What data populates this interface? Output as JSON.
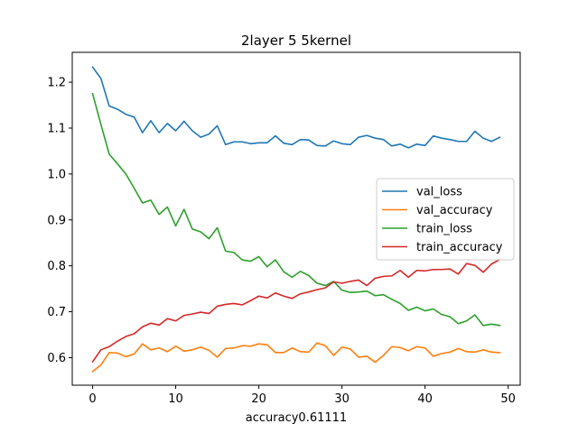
{
  "chart_data": {
    "type": "line",
    "title": "2layer  5 5kernel",
    "xlabel": "accuracy0.61111",
    "ylabel": "",
    "xlim": [
      -2.45,
      51.45
    ],
    "ylim": [
      0.54,
      1.265
    ],
    "xticks": [
      0,
      10,
      20,
      30,
      40,
      50
    ],
    "yticks": [
      0.6,
      0.7,
      0.8,
      0.9,
      1.0,
      1.1,
      1.2
    ],
    "ytick_labels": [
      "0.6",
      "0.7",
      "0.8",
      "0.9",
      "1.0",
      "1.1",
      "1.2"
    ],
    "grid": false,
    "legend_position": "center-right",
    "x": [
      0,
      1,
      2,
      3,
      4,
      5,
      6,
      7,
      8,
      9,
      10,
      11,
      12,
      13,
      14,
      15,
      16,
      17,
      18,
      19,
      20,
      21,
      22,
      23,
      24,
      25,
      26,
      27,
      28,
      29,
      30,
      31,
      32,
      33,
      34,
      35,
      36,
      37,
      38,
      39,
      40,
      41,
      42,
      43,
      44,
      45,
      46,
      47,
      48,
      49
    ],
    "series": [
      {
        "name": "val_loss",
        "color": "#1f77b4",
        "values": [
          1.233,
          1.208,
          1.148,
          1.141,
          1.13,
          1.124,
          1.09,
          1.116,
          1.09,
          1.11,
          1.094,
          1.115,
          1.094,
          1.08,
          1.087,
          1.105,
          1.064,
          1.07,
          1.07,
          1.066,
          1.068,
          1.068,
          1.083,
          1.067,
          1.064,
          1.075,
          1.074,
          1.062,
          1.061,
          1.072,
          1.066,
          1.064,
          1.08,
          1.084,
          1.078,
          1.075,
          1.061,
          1.065,
          1.057,
          1.065,
          1.062,
          1.083,
          1.078,
          1.075,
          1.071,
          1.071,
          1.093,
          1.078,
          1.071,
          1.08
        ]
      },
      {
        "name": "val_accuracy",
        "color": "#ff7f0e",
        "values": [
          0.57,
          0.584,
          0.611,
          0.61,
          0.602,
          0.608,
          0.63,
          0.617,
          0.621,
          0.613,
          0.625,
          0.614,
          0.617,
          0.623,
          0.616,
          0.601,
          0.62,
          0.621,
          0.626,
          0.625,
          0.63,
          0.628,
          0.611,
          0.611,
          0.621,
          0.613,
          0.612,
          0.632,
          0.626,
          0.605,
          0.623,
          0.619,
          0.601,
          0.603,
          0.59,
          0.605,
          0.624,
          0.622,
          0.615,
          0.624,
          0.621,
          0.603,
          0.609,
          0.612,
          0.62,
          0.613,
          0.612,
          0.617,
          0.612,
          0.611
        ]
      },
      {
        "name": "train_loss",
        "color": "#2ca02c",
        "values": [
          1.175,
          1.108,
          1.043,
          1.022,
          1.0,
          0.969,
          0.937,
          0.943,
          0.912,
          0.928,
          0.887,
          0.923,
          0.88,
          0.874,
          0.859,
          0.883,
          0.832,
          0.829,
          0.813,
          0.81,
          0.82,
          0.798,
          0.813,
          0.787,
          0.775,
          0.788,
          0.779,
          0.762,
          0.757,
          0.766,
          0.747,
          0.742,
          0.743,
          0.745,
          0.735,
          0.737,
          0.727,
          0.718,
          0.703,
          0.71,
          0.702,
          0.706,
          0.694,
          0.689,
          0.674,
          0.68,
          0.693,
          0.67,
          0.673,
          0.67
        ]
      },
      {
        "name": "train_accuracy",
        "color": "#d62728",
        "values": [
          0.591,
          0.617,
          0.624,
          0.636,
          0.646,
          0.652,
          0.667,
          0.675,
          0.671,
          0.685,
          0.68,
          0.692,
          0.695,
          0.699,
          0.696,
          0.712,
          0.716,
          0.718,
          0.715,
          0.724,
          0.734,
          0.73,
          0.741,
          0.734,
          0.729,
          0.739,
          0.743,
          0.748,
          0.752,
          0.765,
          0.762,
          0.766,
          0.769,
          0.757,
          0.773,
          0.777,
          0.778,
          0.79,
          0.775,
          0.79,
          0.789,
          0.792,
          0.792,
          0.793,
          0.782,
          0.805,
          0.801,
          0.786,
          0.804,
          0.814
        ]
      }
    ]
  }
}
